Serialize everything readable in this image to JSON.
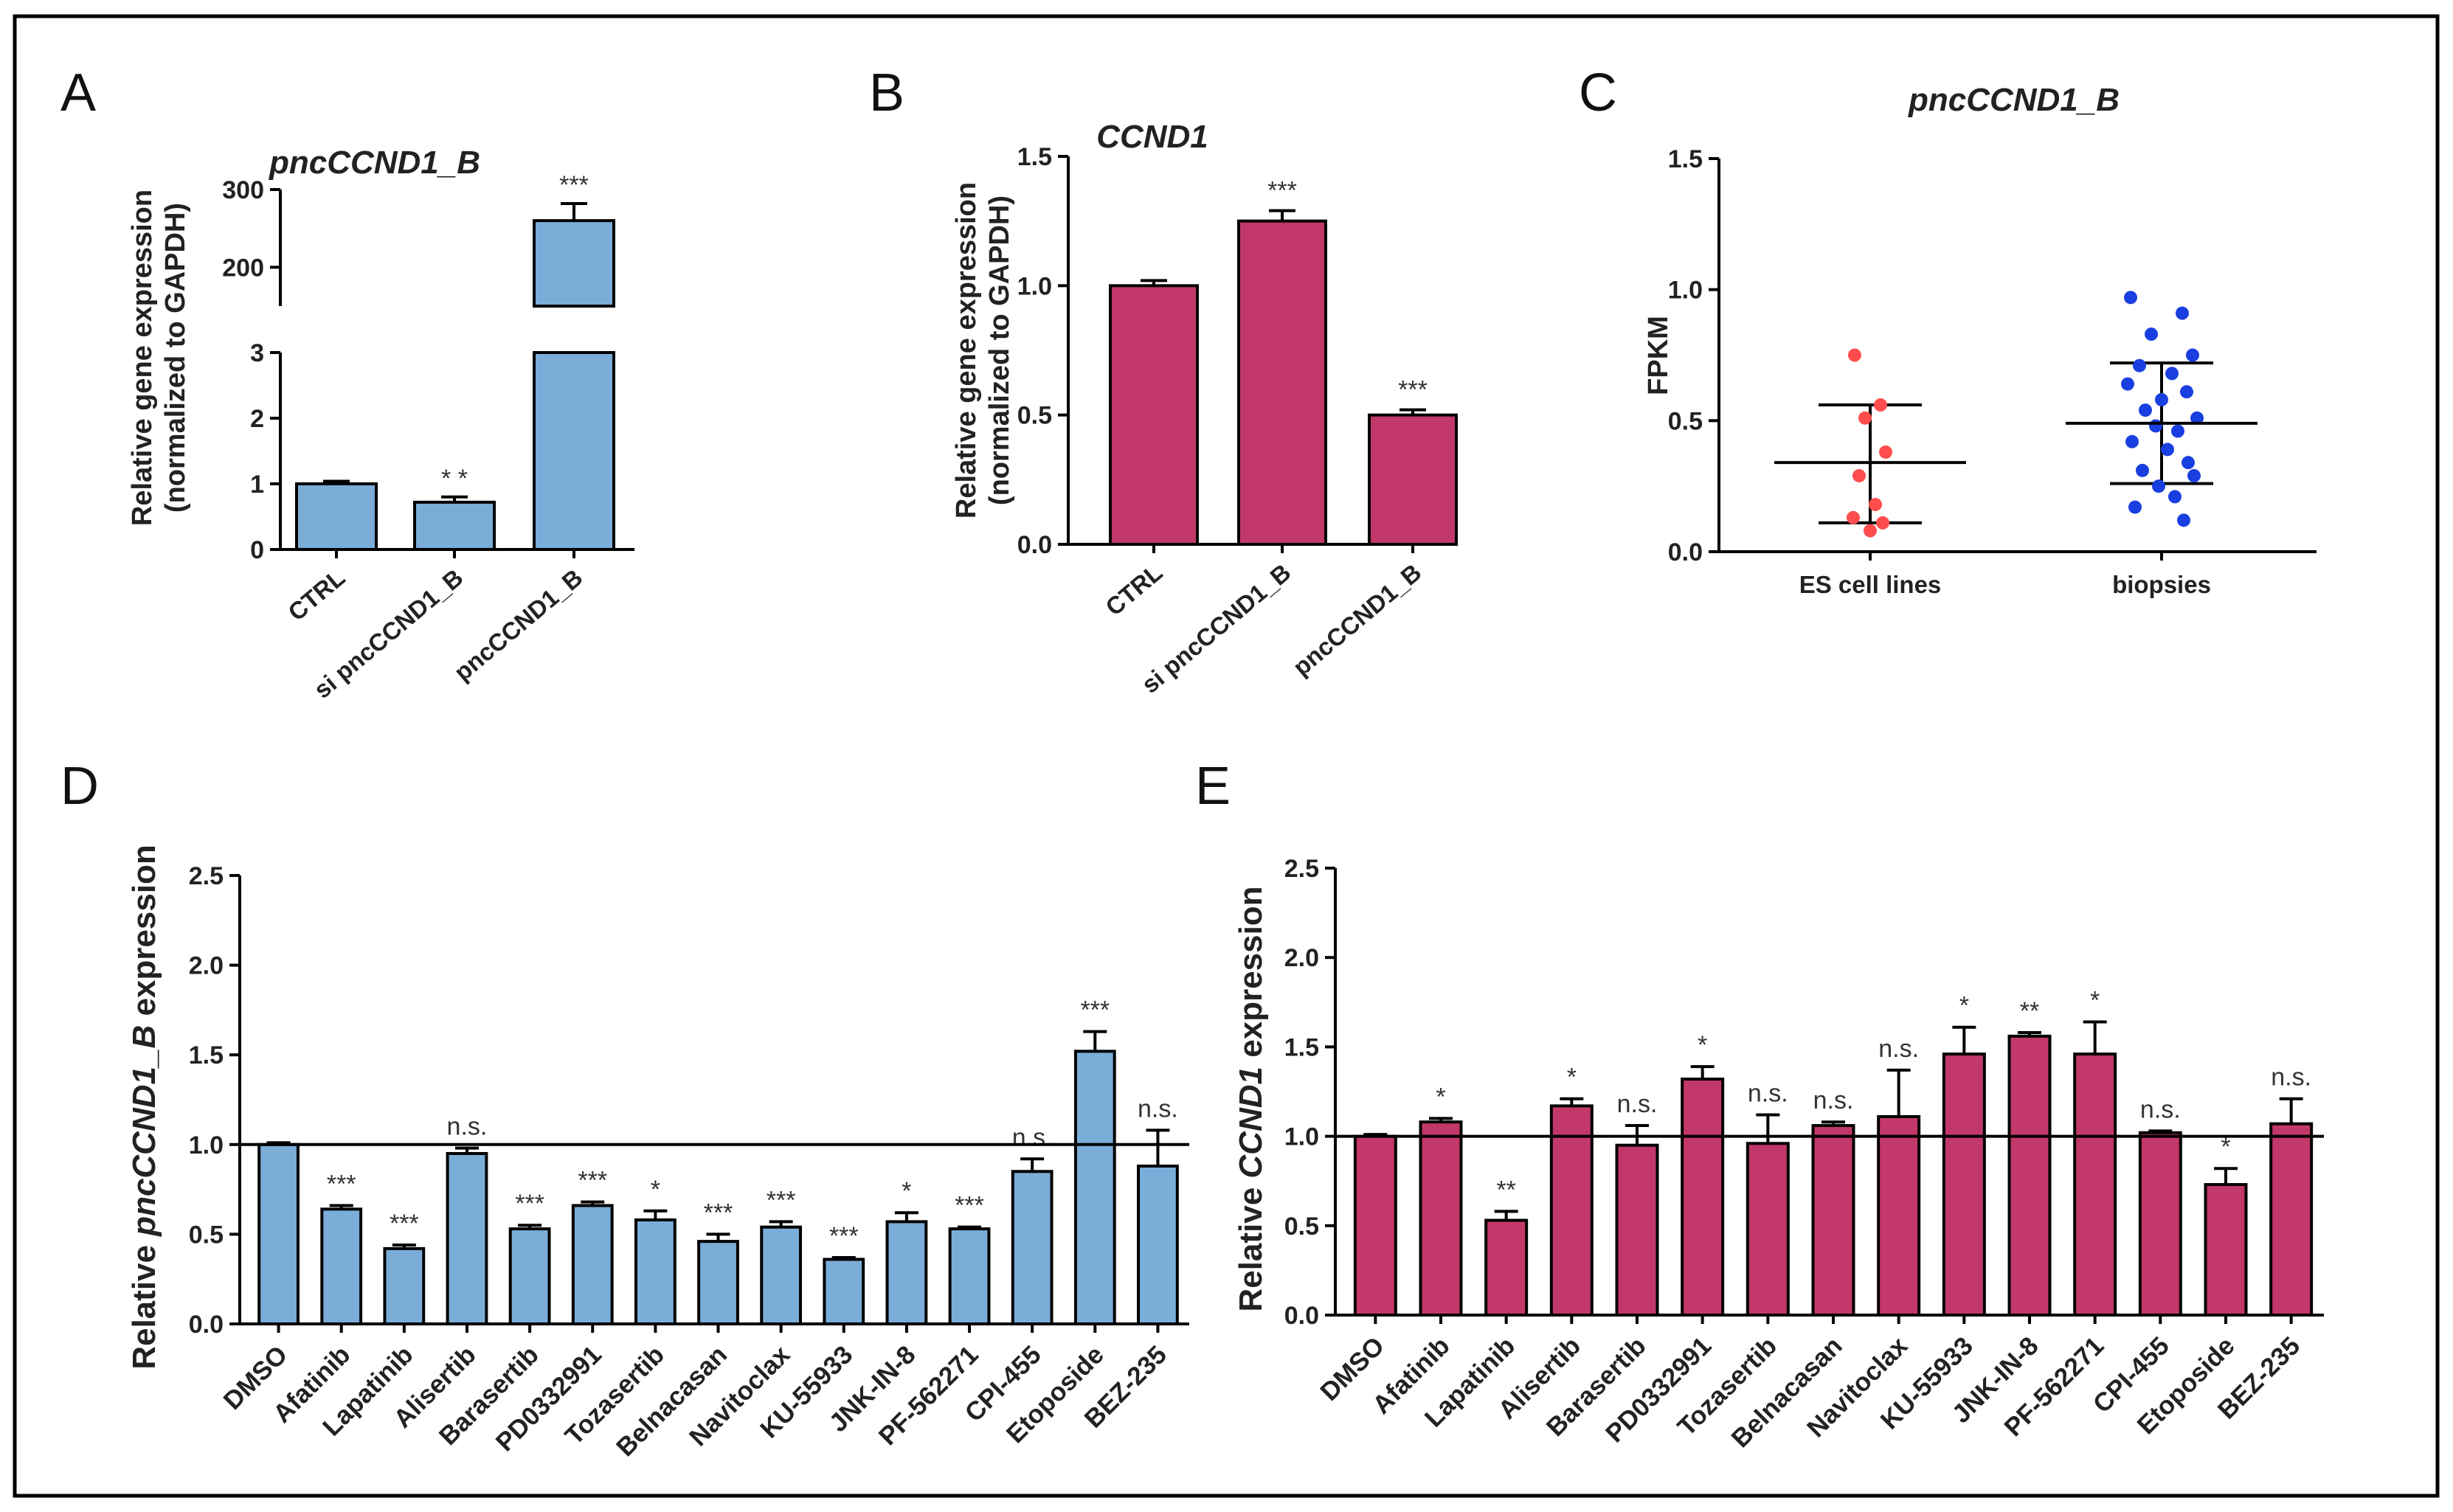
{
  "colors": {
    "blue": "#7AADD8",
    "magenta": "#C2386B",
    "red": "#FF4D4D",
    "dots_blue": "#1A3FE0"
  },
  "panels": {
    "A": "A",
    "B": "B",
    "C": "C",
    "D": "D",
    "E": "E"
  },
  "chart_data": [
    {
      "id": "A",
      "type": "bar",
      "title": "pncCCND1_B",
      "ylabel": [
        "Relative gene expression",
        "(normalized to GAPDH)"
      ],
      "categories": [
        "CTRL",
        "si pncCCND1_B",
        "pncCCND1_B"
      ],
      "values": [
        1.0,
        0.72,
        260
      ],
      "errors": [
        0.04,
        0.08,
        22
      ],
      "significance": [
        "",
        "* *",
        "***"
      ],
      "axis_break": {
        "lower_range": [
          0,
          3
        ],
        "upper_range": [
          150,
          300
        ]
      },
      "lower_ticks": [
        "0",
        "1",
        "2",
        "3"
      ],
      "upper_ticks": [
        "200",
        "300"
      ],
      "color": "#7AADD8"
    },
    {
      "id": "B",
      "type": "bar",
      "title": "CCND1",
      "ylabel": [
        "Relative gene expression",
        "(normalized to GAPDH)"
      ],
      "categories": [
        "CTRL",
        "si pncCCND1_B",
        "pncCCND1_B"
      ],
      "values": [
        1.0,
        1.25,
        0.5
      ],
      "errors": [
        0.02,
        0.04,
        0.02
      ],
      "significance": [
        "",
        "***",
        "***"
      ],
      "ylim": [
        0,
        1.5
      ],
      "yticks": [
        "0.0",
        "0.5",
        "1.0",
        "1.5"
      ],
      "color": "#C2386B"
    },
    {
      "id": "C",
      "type": "scatter",
      "title": "pncCCND1_B",
      "ylabel": "FPKM",
      "categories": [
        "ES cell lines",
        "biopsies"
      ],
      "ylim": [
        0,
        1.5
      ],
      "yticks": [
        "0.0",
        "0.5",
        "1.0",
        "1.5"
      ],
      "groups": [
        {
          "name": "ES cell lines",
          "color": "#FF4D4D",
          "mean": 0.34,
          "sd_low": 0.11,
          "sd_high": 0.56,
          "points": [
            0.75,
            0.56,
            0.51,
            0.38,
            0.29,
            0.18,
            0.13,
            0.11,
            0.08
          ]
        },
        {
          "name": "biopsies",
          "color": "#1A3FE0",
          "mean": 0.49,
          "sd_low": 0.26,
          "sd_high": 0.72,
          "points": [
            0.97,
            0.91,
            0.83,
            0.75,
            0.71,
            0.68,
            0.64,
            0.61,
            0.58,
            0.54,
            0.51,
            0.48,
            0.46,
            0.42,
            0.39,
            0.34,
            0.31,
            0.29,
            0.25,
            0.21,
            0.17,
            0.12
          ]
        }
      ]
    },
    {
      "id": "D",
      "type": "bar",
      "ylabel_parts": [
        "Relative ",
        "pncCCND1_B",
        " expression"
      ],
      "categories": [
        "DMSO",
        "Afatinib",
        "Lapatinib",
        "Alisertib",
        "Barasertib",
        "PD0332991",
        "Tozasertib",
        "Belnacasan",
        "Navitoclax",
        "KU-55933",
        "JNK-IN-8",
        "PF-562271",
        "CPI-455",
        "Etoposide",
        "BEZ-235"
      ],
      "values": [
        1.0,
        0.64,
        0.42,
        0.95,
        0.53,
        0.66,
        0.58,
        0.46,
        0.54,
        0.36,
        0.57,
        0.53,
        0.85,
        1.52,
        0.88
      ],
      "errors": [
        0.01,
        0.02,
        0.02,
        0.03,
        0.02,
        0.02,
        0.05,
        0.04,
        0.03,
        0.01,
        0.05,
        0.01,
        0.07,
        0.11,
        0.2
      ],
      "significance": [
        "",
        "***",
        "***",
        "n.s.",
        "***",
        "***",
        "*",
        "***",
        "***",
        "***",
        "*",
        "***",
        "n.s.",
        "***",
        "n.s."
      ],
      "ylim": [
        0,
        2.5
      ],
      "yticks": [
        "0.0",
        "0.5",
        "1.0",
        "1.5",
        "2.0",
        "2.5"
      ],
      "reference_line": 1.0,
      "color": "#7AADD8"
    },
    {
      "id": "E",
      "type": "bar",
      "ylabel_parts": [
        "Relative ",
        "CCND1",
        " expression"
      ],
      "categories": [
        "DMSO",
        "Afatinib",
        "Lapatinib",
        "Alisertib",
        "Barasertib",
        "PD0332991",
        "Tozasertib",
        "Belnacasan",
        "Navitoclax",
        "KU-55933",
        "JNK-IN-8",
        "PF-562271",
        "CPI-455",
        "Etoposide",
        "BEZ-235"
      ],
      "values": [
        1.0,
        1.08,
        0.53,
        1.17,
        0.95,
        1.32,
        0.96,
        1.06,
        1.11,
        1.46,
        1.56,
        1.46,
        1.02,
        0.73,
        1.07
      ],
      "errors": [
        0.01,
        0.02,
        0.05,
        0.04,
        0.11,
        0.07,
        0.16,
        0.02,
        0.26,
        0.15,
        0.02,
        0.18,
        0.01,
        0.09,
        0.14
      ],
      "significance": [
        "",
        "*",
        "**",
        "*",
        "n.s.",
        "*",
        "n.s.",
        "n.s.",
        "n.s.",
        "*",
        "**",
        "*",
        "n.s.",
        "*",
        "n.s."
      ],
      "ylim": [
        0,
        2.5
      ],
      "yticks": [
        "0.0",
        "0.5",
        "1.0",
        "1.5",
        "2.0",
        "2.5"
      ],
      "reference_line": 1.0,
      "color": "#C2386B"
    }
  ]
}
